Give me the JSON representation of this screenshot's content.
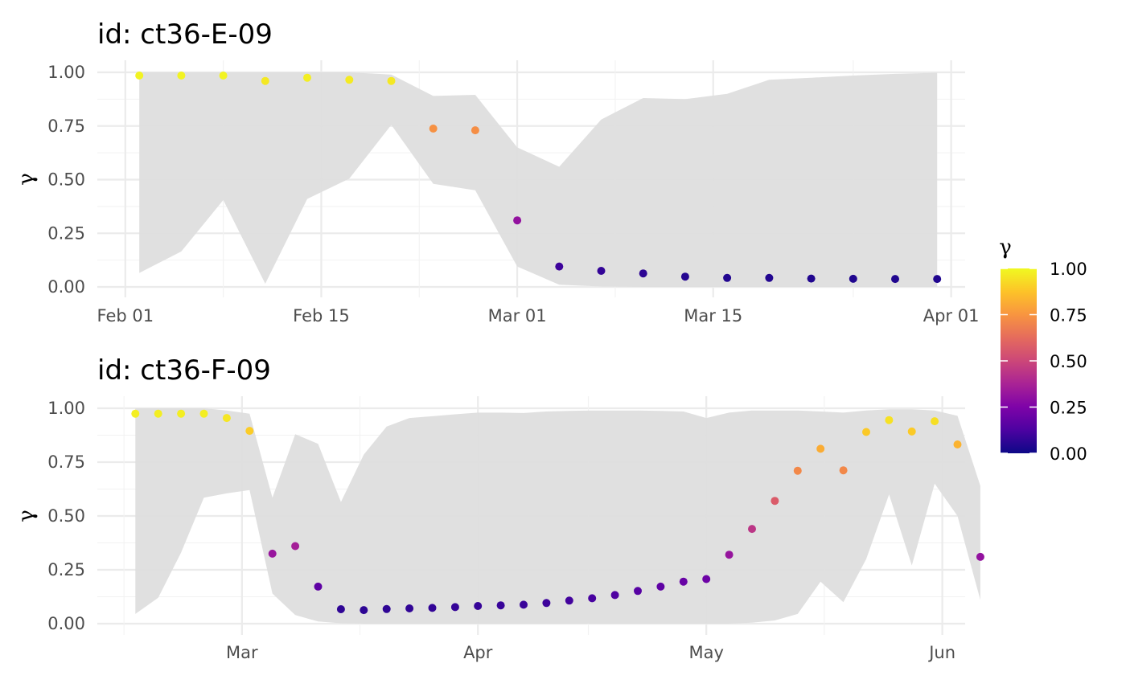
{
  "chart_data": [
    {
      "type": "scatter",
      "title": "id: ct36-E-09",
      "xlabel": "",
      "ylabel": "γ",
      "ylim": [
        0,
        1
      ],
      "yticks": [
        "0.00",
        "0.25",
        "0.50",
        "0.75",
        "1.00"
      ],
      "xlim": [
        "2021-01-30",
        "2021-04-02"
      ],
      "xticks": [
        {
          "label": "Feb 01",
          "date": "2021-02-01"
        },
        {
          "label": "Feb 15",
          "date": "2021-02-15"
        },
        {
          "label": "Mar 01",
          "date": "2021-03-01"
        },
        {
          "label": "Mar 15",
          "date": "2021-03-15"
        },
        {
          "label": "Apr 01",
          "date": "2021-04-01"
        }
      ],
      "points": [
        {
          "x": "2021-02-02",
          "y": 0.985
        },
        {
          "x": "2021-02-05",
          "y": 0.985
        },
        {
          "x": "2021-02-08",
          "y": 0.985
        },
        {
          "x": "2021-02-11",
          "y": 0.96
        },
        {
          "x": "2021-02-14",
          "y": 0.975
        },
        {
          "x": "2021-02-17",
          "y": 0.965
        },
        {
          "x": "2021-02-20",
          "y": 0.96
        },
        {
          "x": "2021-02-23",
          "y": 0.738
        },
        {
          "x": "2021-02-26",
          "y": 0.73
        },
        {
          "x": "2021-03-01",
          "y": 0.31
        },
        {
          "x": "2021-03-04",
          "y": 0.095
        },
        {
          "x": "2021-03-07",
          "y": 0.075
        },
        {
          "x": "2021-03-10",
          "y": 0.063
        },
        {
          "x": "2021-03-13",
          "y": 0.048
        },
        {
          "x": "2021-03-16",
          "y": 0.042
        },
        {
          "x": "2021-03-19",
          "y": 0.042
        },
        {
          "x": "2021-03-22",
          "y": 0.039
        },
        {
          "x": "2021-03-25",
          "y": 0.038
        },
        {
          "x": "2021-03-28",
          "y": 0.037
        },
        {
          "x": "2021-03-31",
          "y": 0.037
        }
      ],
      "ribbon": [
        {
          "x": "2021-02-02",
          "lower": 0.065,
          "upper": 1.0
        },
        {
          "x": "2021-02-05",
          "lower": 0.165,
          "upper": 1.0
        },
        {
          "x": "2021-02-08",
          "lower": 0.405,
          "upper": 1.0
        },
        {
          "x": "2021-02-11",
          "lower": 0.015,
          "upper": 1.0
        },
        {
          "x": "2021-02-14",
          "lower": 0.41,
          "upper": 1.0
        },
        {
          "x": "2021-02-17",
          "lower": 0.505,
          "upper": 1.0
        },
        {
          "x": "2021-02-20",
          "lower": 0.755,
          "upper": 0.99
        },
        {
          "x": "2021-02-23",
          "lower": 0.48,
          "upper": 0.89
        },
        {
          "x": "2021-02-26",
          "lower": 0.45,
          "upper": 0.895
        },
        {
          "x": "2021-03-01",
          "lower": 0.095,
          "upper": 0.65
        },
        {
          "x": "2021-03-04",
          "lower": 0.01,
          "upper": 0.56
        },
        {
          "x": "2021-03-07",
          "lower": 0.002,
          "upper": 0.78
        },
        {
          "x": "2021-03-10",
          "lower": 0.0,
          "upper": 0.88
        },
        {
          "x": "2021-03-13",
          "lower": 0.0,
          "upper": 0.875
        },
        {
          "x": "2021-03-16",
          "lower": 0.0,
          "upper": 0.9
        },
        {
          "x": "2021-03-19",
          "lower": 0.0,
          "upper": 0.965
        },
        {
          "x": "2021-03-22",
          "lower": 0.0,
          "upper": 0.975
        },
        {
          "x": "2021-03-25",
          "lower": 0.0,
          "upper": 0.985
        },
        {
          "x": "2021-03-28",
          "lower": 0.0,
          "upper": 0.993
        },
        {
          "x": "2021-03-31",
          "lower": 0.0,
          "upper": 0.998
        }
      ]
    },
    {
      "type": "scatter",
      "title": "id: ct36-F-09",
      "xlabel": "",
      "ylabel": "γ",
      "ylim": [
        0,
        1
      ],
      "yticks": [
        "0.00",
        "0.25",
        "0.50",
        "0.75",
        "1.00"
      ],
      "xlim": [
        "2021-02-10",
        "2021-06-04"
      ],
      "xticks": [
        {
          "label": "Mar",
          "date": "2021-03-01"
        },
        {
          "label": "Apr",
          "date": "2021-04-01"
        },
        {
          "label": "May",
          "date": "2021-05-01"
        },
        {
          "label": "Jun",
          "date": "2021-06-01"
        }
      ],
      "points": [
        {
          "x": "2021-02-15",
          "y": 0.975
        },
        {
          "x": "2021-02-18",
          "y": 0.975
        },
        {
          "x": "2021-02-21",
          "y": 0.975
        },
        {
          "x": "2021-02-24",
          "y": 0.975
        },
        {
          "x": "2021-02-27",
          "y": 0.955
        },
        {
          "x": "2021-03-02",
          "y": 0.895
        },
        {
          "x": "2021-03-05",
          "y": 0.325
        },
        {
          "x": "2021-03-08",
          "y": 0.36
        },
        {
          "x": "2021-03-11",
          "y": 0.172
        },
        {
          "x": "2021-03-14",
          "y": 0.067
        },
        {
          "x": "2021-03-17",
          "y": 0.063
        },
        {
          "x": "2021-03-20",
          "y": 0.068
        },
        {
          "x": "2021-03-23",
          "y": 0.071
        },
        {
          "x": "2021-03-26",
          "y": 0.073
        },
        {
          "x": "2021-03-29",
          "y": 0.077
        },
        {
          "x": "2021-04-01",
          "y": 0.082
        },
        {
          "x": "2021-04-04",
          "y": 0.085
        },
        {
          "x": "2021-04-07",
          "y": 0.088
        },
        {
          "x": "2021-04-10",
          "y": 0.096
        },
        {
          "x": "2021-04-13",
          "y": 0.107
        },
        {
          "x": "2021-04-16",
          "y": 0.118
        },
        {
          "x": "2021-04-19",
          "y": 0.133
        },
        {
          "x": "2021-04-22",
          "y": 0.152
        },
        {
          "x": "2021-04-25",
          "y": 0.172
        },
        {
          "x": "2021-04-28",
          "y": 0.195
        },
        {
          "x": "2021-05-01",
          "y": 0.207
        },
        {
          "x": "2021-05-04",
          "y": 0.32
        },
        {
          "x": "2021-05-07",
          "y": 0.44
        },
        {
          "x": "2021-05-10",
          "y": 0.57
        },
        {
          "x": "2021-05-13",
          "y": 0.71
        },
        {
          "x": "2021-05-16",
          "y": 0.812
        },
        {
          "x": "2021-05-19",
          "y": 0.712
        },
        {
          "x": "2021-05-22",
          "y": 0.89
        },
        {
          "x": "2021-05-25",
          "y": 0.945
        },
        {
          "x": "2021-05-28",
          "y": 0.892
        },
        {
          "x": "2021-05-31",
          "y": 0.94
        },
        {
          "x": "2021-06-03",
          "y": 0.832
        },
        {
          "x": "2021-06-06",
          "y": 0.31
        }
      ],
      "ribbon": [
        {
          "x": "2021-02-15",
          "lower": 0.045,
          "upper": 1.0
        },
        {
          "x": "2021-02-18",
          "lower": 0.12,
          "upper": 1.0
        },
        {
          "x": "2021-02-21",
          "lower": 0.33,
          "upper": 1.0
        },
        {
          "x": "2021-02-24",
          "lower": 0.585,
          "upper": 1.0
        },
        {
          "x": "2021-02-27",
          "lower": 0.605,
          "upper": 0.99
        },
        {
          "x": "2021-03-02",
          "lower": 0.62,
          "upper": 0.975
        },
        {
          "x": "2021-03-05",
          "lower": 0.14,
          "upper": 0.585
        },
        {
          "x": "2021-03-08",
          "lower": 0.04,
          "upper": 0.88
        },
        {
          "x": "2021-03-11",
          "lower": 0.01,
          "upper": 0.835
        },
        {
          "x": "2021-03-14",
          "lower": 0.002,
          "upper": 0.565
        },
        {
          "x": "2021-03-17",
          "lower": 0.0,
          "upper": 0.785
        },
        {
          "x": "2021-03-20",
          "lower": 0.0,
          "upper": 0.915
        },
        {
          "x": "2021-03-23",
          "lower": 0.0,
          "upper": 0.955
        },
        {
          "x": "2021-03-26",
          "lower": 0.0,
          "upper": 0.963
        },
        {
          "x": "2021-03-29",
          "lower": 0.0,
          "upper": 0.972
        },
        {
          "x": "2021-04-01",
          "lower": 0.0,
          "upper": 0.98
        },
        {
          "x": "2021-04-04",
          "lower": 0.0,
          "upper": 0.98
        },
        {
          "x": "2021-04-07",
          "lower": 0.0,
          "upper": 0.978
        },
        {
          "x": "2021-04-10",
          "lower": 0.0,
          "upper": 0.985
        },
        {
          "x": "2021-04-13",
          "lower": 0.0,
          "upper": 0.988
        },
        {
          "x": "2021-04-16",
          "lower": 0.0,
          "upper": 0.99
        },
        {
          "x": "2021-04-19",
          "lower": 0.0,
          "upper": 0.99
        },
        {
          "x": "2021-04-22",
          "lower": 0.0,
          "upper": 0.99
        },
        {
          "x": "2021-04-25",
          "lower": 0.0,
          "upper": 0.988
        },
        {
          "x": "2021-04-28",
          "lower": 0.0,
          "upper": 0.985
        },
        {
          "x": "2021-05-01",
          "lower": 0.0,
          "upper": 0.955
        },
        {
          "x": "2021-05-04",
          "lower": 0.0,
          "upper": 0.98
        },
        {
          "x": "2021-05-07",
          "lower": 0.005,
          "upper": 0.99
        },
        {
          "x": "2021-05-10",
          "lower": 0.015,
          "upper": 0.99
        },
        {
          "x": "2021-05-13",
          "lower": 0.045,
          "upper": 0.99
        },
        {
          "x": "2021-05-16",
          "lower": 0.195,
          "upper": 0.985
        },
        {
          "x": "2021-05-19",
          "lower": 0.1,
          "upper": 0.98
        },
        {
          "x": "2021-05-22",
          "lower": 0.3,
          "upper": 0.99
        },
        {
          "x": "2021-05-25",
          "lower": 0.6,
          "upper": 0.995
        },
        {
          "x": "2021-05-28",
          "lower": 0.27,
          "upper": 0.995
        },
        {
          "x": "2021-05-31",
          "lower": 0.65,
          "upper": 0.99
        },
        {
          "x": "2021-06-03",
          "lower": 0.5,
          "upper": 0.965
        },
        {
          "x": "2021-06-06",
          "lower": 0.11,
          "upper": 0.64
        }
      ]
    }
  ],
  "legend": {
    "title": "γ",
    "labels": [
      "1.00",
      "0.75",
      "0.50",
      "0.25",
      "0.00"
    ],
    "colormap": "plasma",
    "range": [
      0,
      1
    ]
  },
  "colors": {
    "ribbon": "#dedede",
    "grid_major": "#ebebeb",
    "grid_minor": "#f2f2f2"
  }
}
